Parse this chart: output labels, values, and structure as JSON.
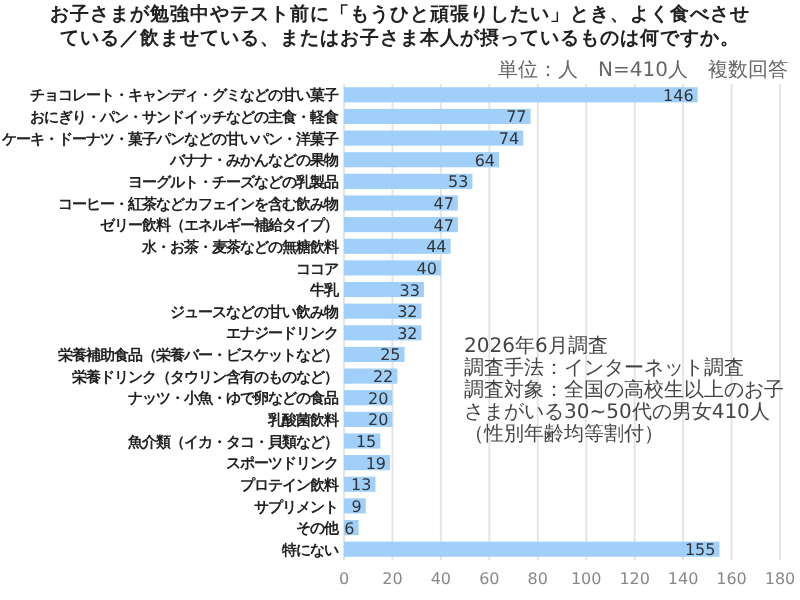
{
  "chart_data": {
    "type": "bar",
    "orientation": "horizontal",
    "title": "お子さまが勉強中やテスト前に「もうひと頑張りしたい」とき、よく食べさせている／飲ませている、またはお子さま本人が摂っているものは何ですか。",
    "subtitle": "単位：人　N=410人　複数回答",
    "categories": [
      "チョコレート・キャンディ・グミなどの甘い菓子",
      "おにぎり・パン・サンドイッチなどの主食・軽食",
      "ケーキ・ドーナツ・菓子パンなどの甘いパン・洋菓子",
      "バナナ・みかんなどの果物",
      "ヨーグルト・チーズなどの乳製品",
      "コーヒー・紅茶などカフェインを含む飲み物",
      "ゼリー飲料（エネルギー補給タイプ）",
      "水・お茶・麦茶などの無糖飲料",
      "ココア",
      "牛乳",
      "ジュースなどの甘い飲み物",
      "エナジードリンク",
      "栄養補助食品（栄養バー・ビスケットなど）",
      "栄養ドリンク（タウリン含有のものなど）",
      "ナッツ・小魚・ゆで卵などの食品",
      "乳酸菌飲料",
      "魚介類（イカ・タコ・貝類など）",
      "スポーツドリンク",
      "プロテイン飲料",
      "サプリメント",
      "その他",
      "特にない"
    ],
    "values": [
      146,
      77,
      74,
      64,
      53,
      47,
      47,
      44,
      40,
      33,
      32,
      32,
      25,
      22,
      20,
      20,
      15,
      19,
      13,
      9,
      6,
      155
    ],
    "color": "#a0d0fa",
    "data_labels": true,
    "grid": "x",
    "xlim": [
      0,
      180
    ],
    "xticks": [
      0,
      20,
      40,
      60,
      80,
      100,
      120,
      140,
      160,
      180
    ],
    "annotations": [
      "2026年6月調査",
      "調査手法：インターネット調査",
      "調査対象：全国の高校生以上のお子さまがいる30~50代の男女410人（性別年齢均等割付）"
    ]
  }
}
